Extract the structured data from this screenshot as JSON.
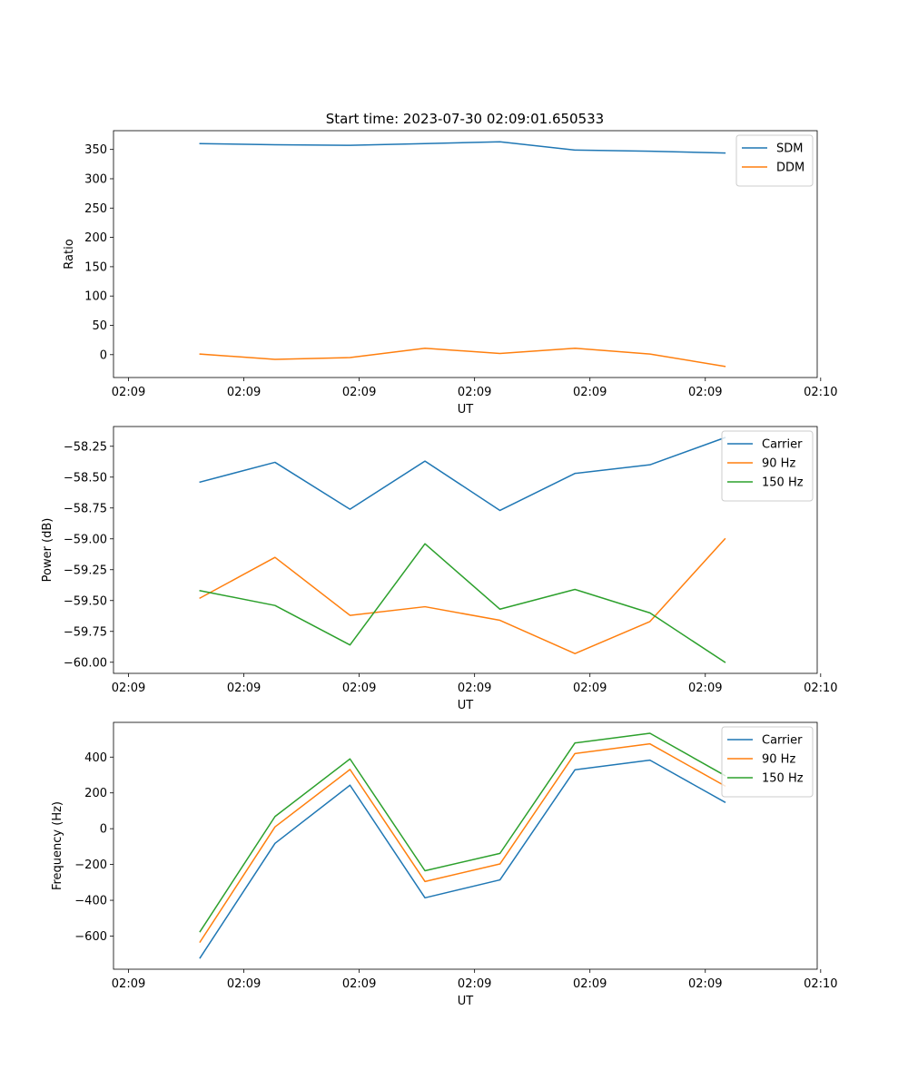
{
  "figure": {
    "title": "Start time: 2023-07-30 02:09:01.650533"
  },
  "chart_data": [
    {
      "type": "line",
      "xlabel": "UT",
      "ylabel": "Ratio",
      "x": [
        0.75,
        1.4,
        2.05,
        2.7,
        3.35,
        4.0,
        4.65,
        5.3
      ],
      "xlim": [
        0,
        6.1
      ],
      "xticks": [
        0.13,
        1.13,
        2.13,
        3.13,
        4.13,
        5.13,
        6.13
      ],
      "xtick_labels": [
        "02:09",
        "02:09",
        "02:09",
        "02:09",
        "02:09",
        "02:09",
        "02:10"
      ],
      "ylim": [
        -39,
        382
      ],
      "yticks": [
        0,
        50,
        100,
        150,
        200,
        250,
        300,
        350
      ],
      "ytick_labels": [
        "0",
        "50",
        "100",
        "150",
        "200",
        "250",
        "300",
        "350"
      ],
      "legend_position": "top-right",
      "series": [
        {
          "name": "SDM",
          "color": "#1f77b4",
          "values": [
            360,
            358,
            357,
            360,
            363,
            349,
            347,
            344
          ]
        },
        {
          "name": "DDM",
          "color": "#ff7f0e",
          "values": [
            1,
            -8,
            -5,
            11,
            2,
            11,
            1,
            -20
          ]
        }
      ]
    },
    {
      "type": "line",
      "xlabel": "UT",
      "ylabel": "Power (dB)",
      "x": [
        0.75,
        1.4,
        2.05,
        2.7,
        3.35,
        4.0,
        4.65,
        5.3
      ],
      "xlim": [
        0,
        6.1
      ],
      "xticks": [
        0.13,
        1.13,
        2.13,
        3.13,
        4.13,
        5.13,
        6.13
      ],
      "xtick_labels": [
        "02:09",
        "02:09",
        "02:09",
        "02:09",
        "02:09",
        "02:09",
        "02:10"
      ],
      "ylim": [
        -60.09,
        -58.09
      ],
      "yticks": [
        -58.25,
        -58.5,
        -58.75,
        -59.0,
        -59.25,
        -59.5,
        -59.75,
        -60.0
      ],
      "ytick_labels": [
        "−58.25",
        "−58.50",
        "−58.75",
        "−59.00",
        "−59.25",
        "−59.50",
        "−59.75",
        "−60.00"
      ],
      "legend_position": "top-right",
      "series": [
        {
          "name": "Carrier",
          "color": "#1f77b4",
          "values": [
            -58.54,
            -58.38,
            -58.76,
            -58.37,
            -58.77,
            -58.47,
            -58.4,
            -58.18
          ]
        },
        {
          "name": "90 Hz",
          "color": "#ff7f0e",
          "values": [
            -59.48,
            -59.15,
            -59.62,
            -59.55,
            -59.66,
            -59.93,
            -59.67,
            -59.0
          ]
        },
        {
          "name": "150 Hz",
          "color": "#2ca02c",
          "values": [
            -59.42,
            -59.54,
            -59.86,
            -59.04,
            -59.57,
            -59.41,
            -59.6,
            -60.0
          ]
        }
      ]
    },
    {
      "type": "line",
      "xlabel": "UT",
      "ylabel": "Frequency (Hz)",
      "x": [
        0.75,
        1.4,
        2.05,
        2.7,
        3.35,
        4.0,
        4.65,
        5.3
      ],
      "xlim": [
        0,
        6.1
      ],
      "xticks": [
        0.13,
        1.13,
        2.13,
        3.13,
        4.13,
        5.13,
        6.13
      ],
      "xtick_labels": [
        "02:09",
        "02:09",
        "02:09",
        "02:09",
        "02:09",
        "02:09",
        "02:10"
      ],
      "ylim": [
        -785,
        594
      ],
      "yticks": [
        -600,
        -400,
        -200,
        0,
        200,
        400
      ],
      "ytick_labels": [
        "−600",
        "−400",
        "−200",
        "0",
        "200",
        "400"
      ],
      "legend_position": "top-right",
      "series": [
        {
          "name": "Carrier",
          "color": "#1f77b4",
          "values": [
            -722,
            -82,
            243,
            -386,
            -286,
            329,
            383,
            148
          ]
        },
        {
          "name": "90 Hz",
          "color": "#ff7f0e",
          "values": [
            -633,
            10,
            331,
            -295,
            -197,
            420,
            474,
            239
          ]
        },
        {
          "name": "150 Hz",
          "color": "#2ca02c",
          "values": [
            -575,
            68,
            390,
            -235,
            -138,
            479,
            533,
            297
          ]
        }
      ]
    }
  ]
}
